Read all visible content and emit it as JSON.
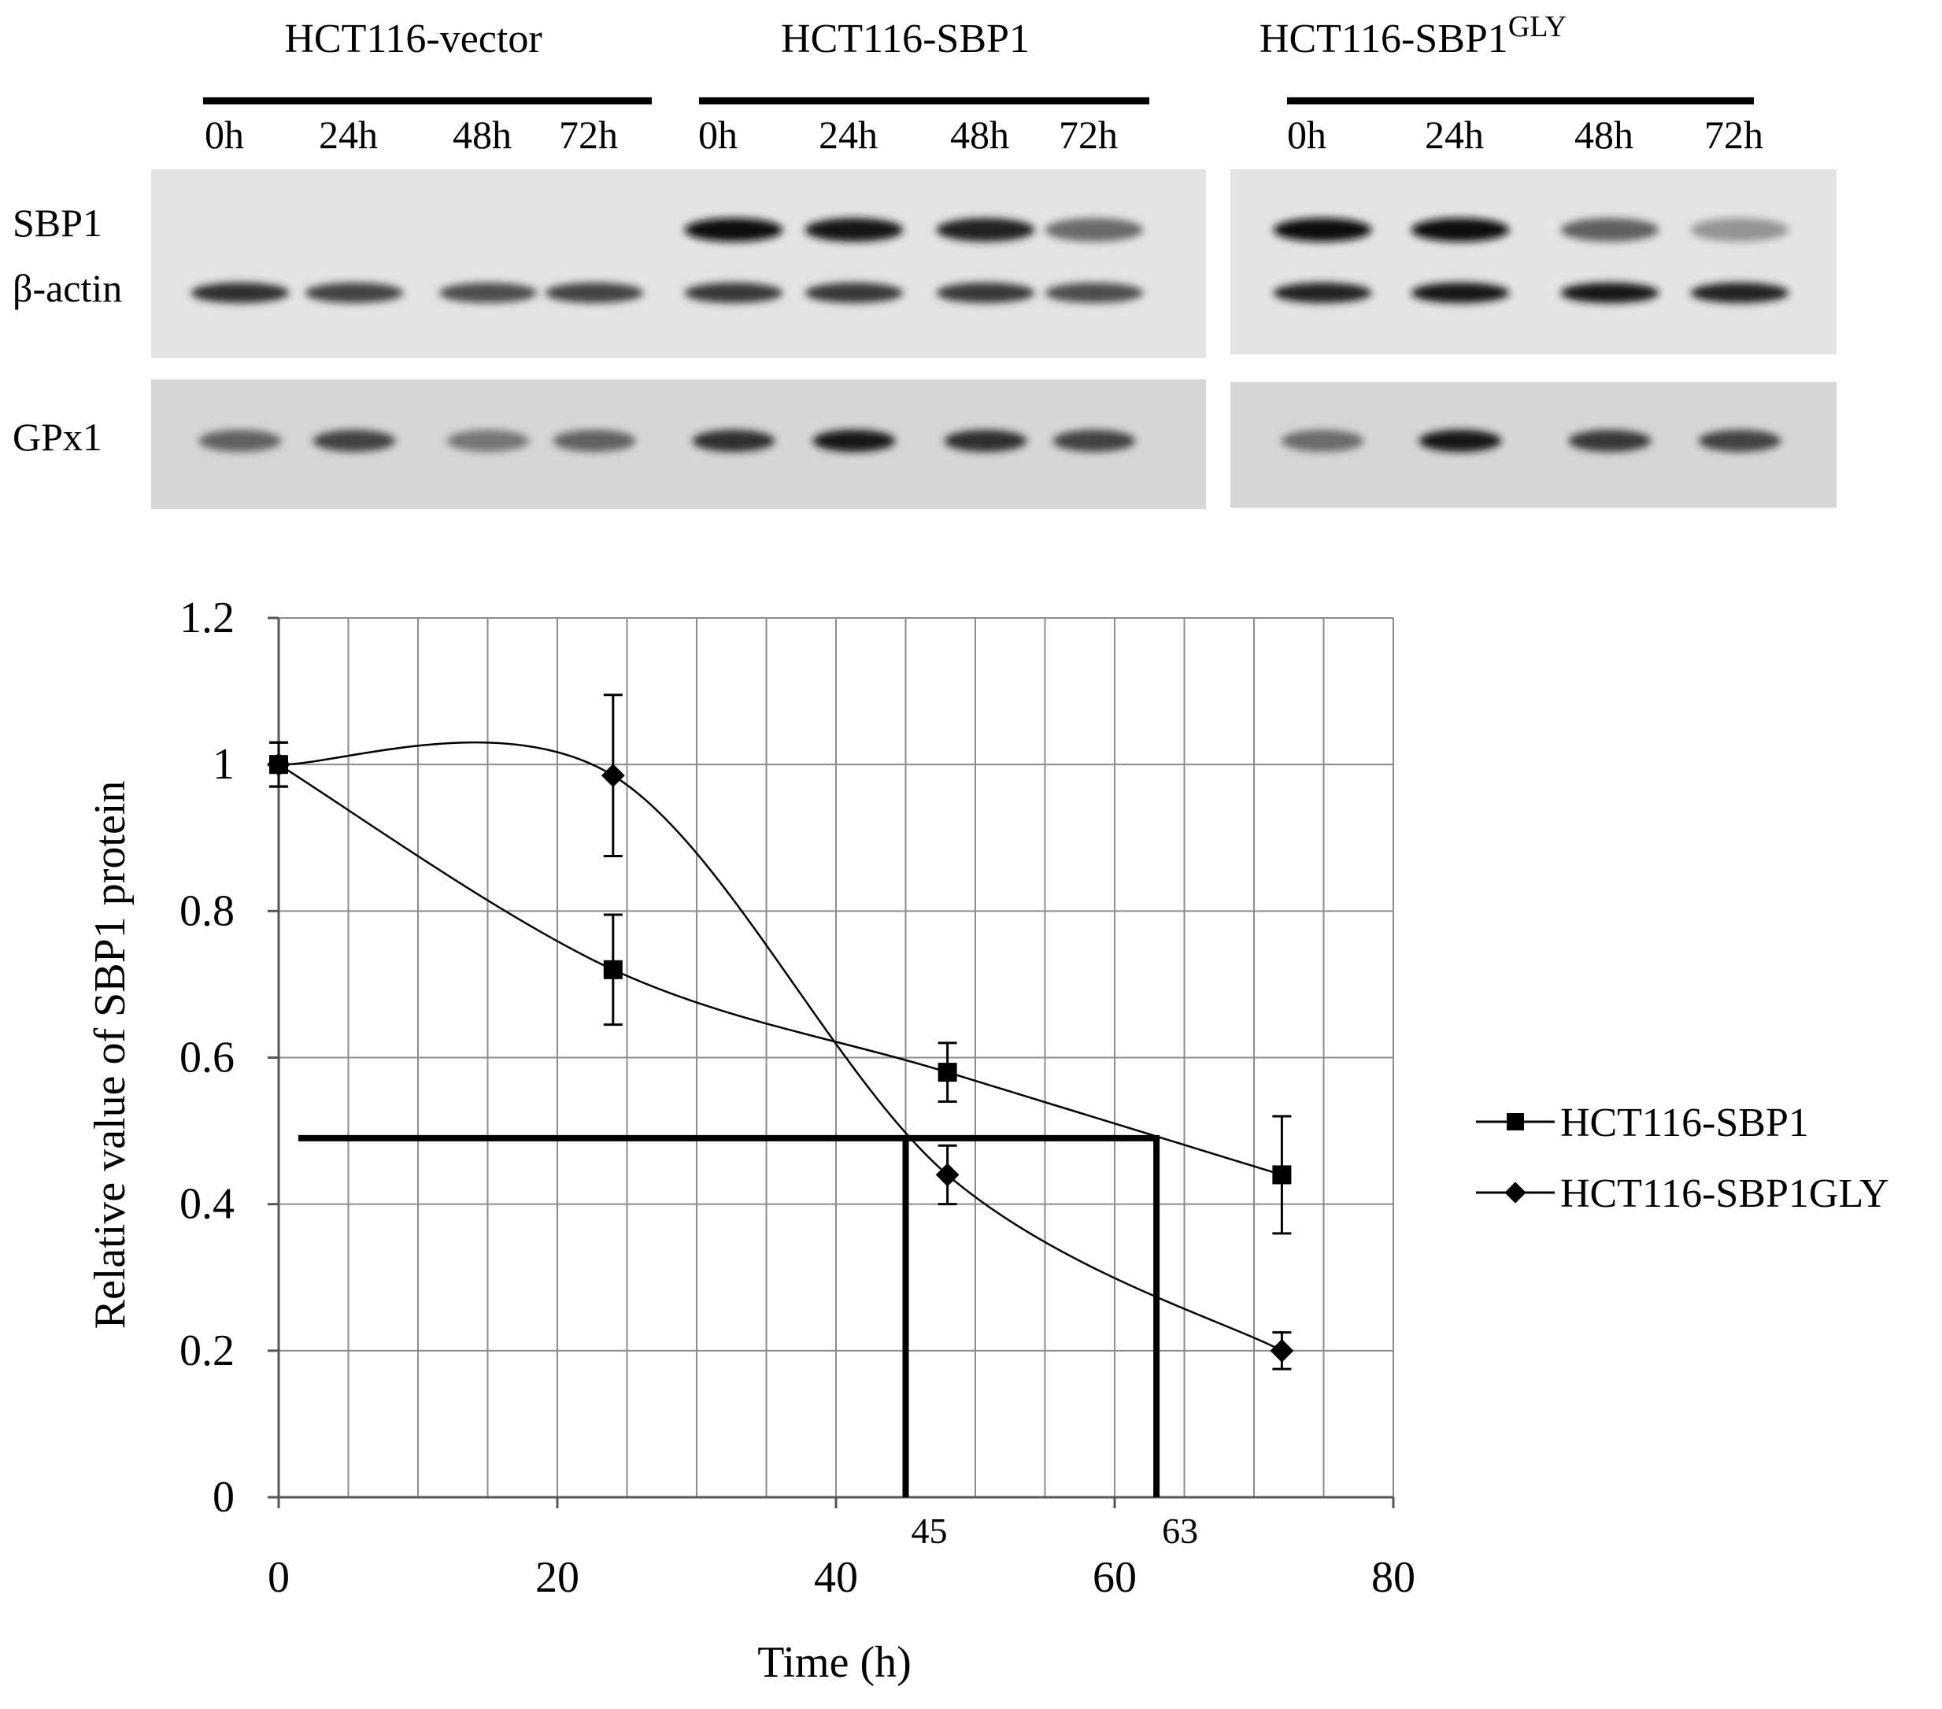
{
  "western_blot": {
    "groups": [
      {
        "name": "HCT116-vector",
        "sup": ""
      },
      {
        "name": "HCT116-SBP1",
        "sup": ""
      },
      {
        "name": "HCT116-SBP1",
        "sup": "GLY"
      }
    ],
    "timepoints": [
      "0h",
      "24h",
      "48h",
      "72h"
    ],
    "row_labels": [
      "SBP1",
      "β-actin",
      "GPx1"
    ],
    "band_intensity": {
      "SBP1": [
        [
          0,
          0,
          0,
          0
        ],
        [
          1.0,
          0.95,
          0.9,
          0.55
        ],
        [
          1.0,
          1.0,
          0.6,
          0.35
        ]
      ],
      "beta_actin": [
        [
          0.85,
          0.75,
          0.7,
          0.75
        ],
        [
          0.8,
          0.8,
          0.8,
          0.7
        ],
        [
          0.9,
          0.95,
          0.95,
          0.9
        ]
      ],
      "GPx1": [
        [
          0.6,
          0.75,
          0.5,
          0.6
        ],
        [
          0.85,
          0.95,
          0.85,
          0.75
        ],
        [
          0.55,
          0.95,
          0.8,
          0.75
        ]
      ]
    }
  },
  "chart_data": {
    "type": "line",
    "xlabel": "Time (h)",
    "ylabel": "Relative value of SBP1 protein",
    "xlim": [
      0,
      80
    ],
    "ylim": [
      0,
      1.2
    ],
    "xticks": [
      0,
      20,
      40,
      60,
      80
    ],
    "yticks": [
      0,
      0.2,
      0.4,
      0.6,
      0.8,
      1,
      1.2
    ],
    "x_tick_labels": [
      "0",
      "20",
      "40",
      "60",
      "80"
    ],
    "y_tick_labels": [
      "0",
      "0.2",
      "0.4",
      "0.6",
      "0.8",
      "1",
      "1.2"
    ],
    "grid": true,
    "legend_position": "right",
    "series": [
      {
        "name": "HCT116-SBP1",
        "marker": "square",
        "x": [
          0,
          24,
          48,
          72
        ],
        "y": [
          1.0,
          0.72,
          0.58,
          0.44
        ],
        "yerr": [
          0.03,
          0.075,
          0.04,
          0.08
        ]
      },
      {
        "name": "HCT116-SBP1GLY",
        "marker": "diamond",
        "x": [
          0,
          24,
          48,
          72
        ],
        "y": [
          1.0,
          0.985,
          0.44,
          0.2
        ],
        "yerr": [
          0.03,
          0.11,
          0.04,
          0.025
        ]
      }
    ],
    "annotations": [
      {
        "label": "45",
        "x": 45,
        "y": 0.49
      },
      {
        "label": "63",
        "x": 63,
        "y": 0.49
      }
    ]
  }
}
